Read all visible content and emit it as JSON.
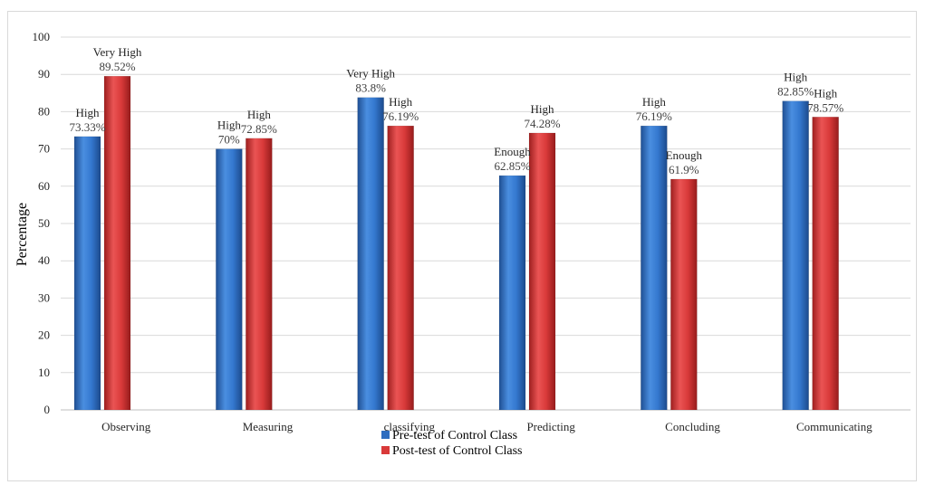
{
  "chart_data": {
    "type": "bar",
    "ylabel": "Percentage",
    "xlabel": "",
    "ylim": [
      0,
      100
    ],
    "yticks": [
      0,
      10,
      20,
      30,
      40,
      50,
      60,
      70,
      80,
      90,
      100
    ],
    "grid": true,
    "legend_position": "bottom",
    "categories": [
      "Observing",
      "Measuring",
      "classifying",
      "Predicting",
      "Concluding",
      "Communicating"
    ],
    "series": [
      {
        "name": "Pre-test of Control Class",
        "color": "#2e6dbf",
        "values": [
          73.33,
          70,
          83.8,
          62.85,
          76.19,
          82.85
        ],
        "value_labels": [
          "73.33%",
          "70%",
          "83.8%",
          "62.85%",
          "76.19%",
          "82.85%"
        ],
        "category_words": [
          "High",
          "High",
          "Very High",
          "Enough",
          "High",
          "High"
        ]
      },
      {
        "name": "Post-test of Control Class",
        "color": "#d93a3a",
        "values": [
          89.52,
          72.85,
          76.19,
          74.28,
          61.9,
          78.57
        ],
        "value_labels": [
          "89.52%",
          "72.85%",
          "76.19%",
          "74.28%",
          "61.9%",
          "78.57%"
        ],
        "category_words": [
          "Very High",
          "High",
          "High",
          "High",
          "Enough",
          "High"
        ]
      }
    ]
  }
}
